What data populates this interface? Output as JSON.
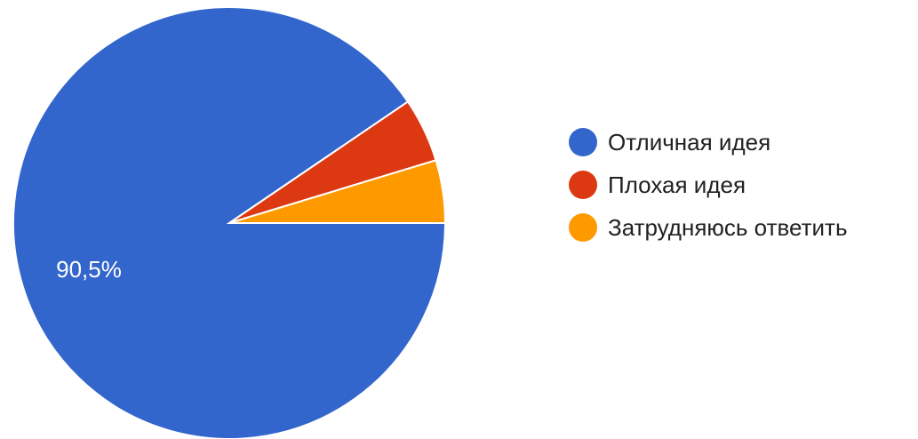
{
  "chart_data": {
    "type": "pie",
    "slices": [
      {
        "label": "Отличная идея",
        "value": 90.5,
        "color": "#3366cc",
        "data_label": "90,5%"
      },
      {
        "label": "Плохая идея",
        "value": 4.8,
        "color": "#dc3912",
        "data_label": ""
      },
      {
        "label": "Затрудняюсь ответить",
        "value": 4.7,
        "color": "#ff9900",
        "data_label": ""
      }
    ],
    "legend_position": "right"
  },
  "legend": {
    "items": [
      {
        "label": "Отличная идея",
        "color": "#3366cc"
      },
      {
        "label": "Плохая идея",
        "color": "#dc3912"
      },
      {
        "label": "Затрудняюсь ответить",
        "color": "#ff9900"
      }
    ]
  }
}
